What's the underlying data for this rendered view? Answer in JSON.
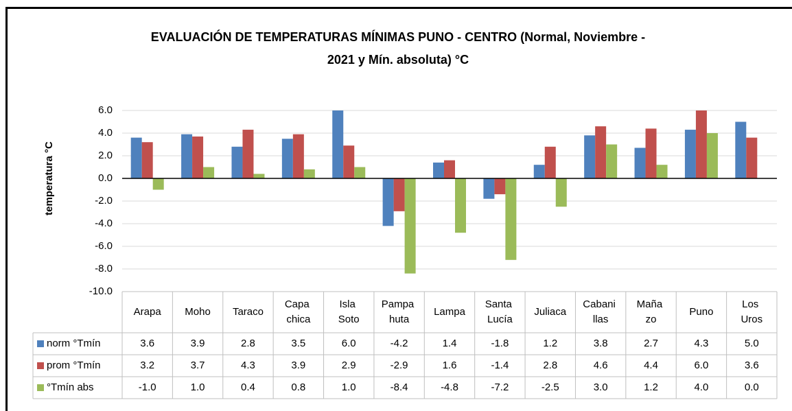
{
  "chart_data": {
    "type": "bar",
    "title": [
      "EVALUACIÓN DE TEMPERATURAS MÍNIMAS PUNO - CENTRO (Normal, Noviembre -",
      "2021 y  Mín. absoluta) °C"
    ],
    "y_label": "temperatura °C",
    "categories": [
      "Arapa",
      "Moho",
      "Taraco",
      "Capa chica",
      "Isla Soto",
      "Pampa huta",
      "Lampa",
      "Santa Lucía",
      "Juliaca",
      "Cabani llas",
      "Maña zo",
      "Puno",
      "Los Uros"
    ],
    "series": [
      {
        "name": "norm °Tmín",
        "color": "#4f81bd",
        "values": [
          3.6,
          3.9,
          2.8,
          3.5,
          6.0,
          -4.2,
          1.4,
          -1.8,
          1.2,
          3.8,
          2.7,
          4.3,
          5.0
        ],
        "value_labels": [
          "3.6",
          "3.9",
          "2.8",
          "3.5",
          "6.0",
          "-4.2",
          "1.4",
          "-1.8",
          "1.2",
          "3.8",
          "2.7",
          "4.3",
          "5.0"
        ]
      },
      {
        "name": "prom °Tmín",
        "color": "#c0504d",
        "values": [
          3.2,
          3.7,
          4.3,
          3.9,
          2.9,
          -2.9,
          1.6,
          -1.4,
          2.8,
          4.6,
          4.4,
          6.0,
          3.6
        ],
        "value_labels": [
          "3.2",
          "3.7",
          "4.3",
          "3.9",
          "2.9",
          "-2.9",
          "1.6",
          "-1.4",
          "2.8",
          "4.6",
          "4.4",
          "6.0",
          "3.6"
        ]
      },
      {
        "name": "°Tmín abs",
        "color": "#9bbb59",
        "values": [
          -1.0,
          1.0,
          0.4,
          0.8,
          1.0,
          -8.4,
          -4.8,
          -7.2,
          -2.5,
          3.0,
          1.2,
          4.0,
          0.0
        ],
        "value_labels": [
          "-1.0",
          "1.0",
          "0.4",
          "0.8",
          "1.0",
          "-8.4",
          "-4.8",
          "-7.2",
          "-2.5",
          "3.0",
          "1.2",
          "4.0",
          "0.0"
        ]
      }
    ],
    "ylim": [
      -10,
      6
    ],
    "yticks": [
      {
        "value": -10,
        "label": "-10.0"
      },
      {
        "value": -8,
        "label": "-8.0"
      },
      {
        "value": -6,
        "label": "-6.0"
      },
      {
        "value": -4,
        "label": "-4.0"
      },
      {
        "value": -2,
        "label": "-2.0"
      },
      {
        "value": 0,
        "label": "0.0"
      },
      {
        "value": 2,
        "label": "2.0"
      },
      {
        "value": 4,
        "label": "4.0"
      },
      {
        "value": 6,
        "label": "6.0"
      }
    ],
    "grid": true
  }
}
